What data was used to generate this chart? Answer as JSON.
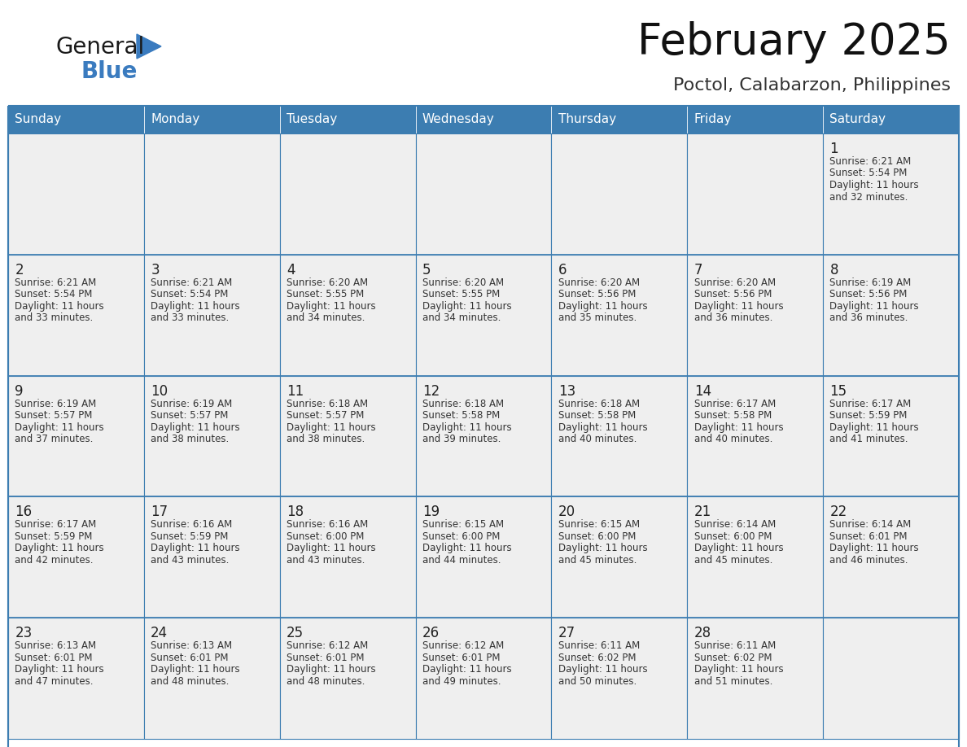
{
  "title": "February 2025",
  "subtitle": "Poctol, Calabarzon, Philippines",
  "header_color": "#3c7db1",
  "header_text_color": "#ffffff",
  "day_names": [
    "Sunday",
    "Monday",
    "Tuesday",
    "Wednesday",
    "Thursday",
    "Friday",
    "Saturday"
  ],
  "background_color": "#ffffff",
  "cell_bg_color": "#efefef",
  "cell_white_bg": "#ffffff",
  "cell_border_color": "#3c7db1",
  "day_num_color": "#222222",
  "info_text_color": "#333333",
  "logo_general_color": "#1a1a1a",
  "logo_blue_color": "#3a7bbf",
  "weeks": [
    [
      {
        "day": null,
        "info": ""
      },
      {
        "day": null,
        "info": ""
      },
      {
        "day": null,
        "info": ""
      },
      {
        "day": null,
        "info": ""
      },
      {
        "day": null,
        "info": ""
      },
      {
        "day": null,
        "info": ""
      },
      {
        "day": 1,
        "info": "Sunrise: 6:21 AM\nSunset: 5:54 PM\nDaylight: 11 hours\nand 32 minutes."
      }
    ],
    [
      {
        "day": 2,
        "info": "Sunrise: 6:21 AM\nSunset: 5:54 PM\nDaylight: 11 hours\nand 33 minutes."
      },
      {
        "day": 3,
        "info": "Sunrise: 6:21 AM\nSunset: 5:54 PM\nDaylight: 11 hours\nand 33 minutes."
      },
      {
        "day": 4,
        "info": "Sunrise: 6:20 AM\nSunset: 5:55 PM\nDaylight: 11 hours\nand 34 minutes."
      },
      {
        "day": 5,
        "info": "Sunrise: 6:20 AM\nSunset: 5:55 PM\nDaylight: 11 hours\nand 34 minutes."
      },
      {
        "day": 6,
        "info": "Sunrise: 6:20 AM\nSunset: 5:56 PM\nDaylight: 11 hours\nand 35 minutes."
      },
      {
        "day": 7,
        "info": "Sunrise: 6:20 AM\nSunset: 5:56 PM\nDaylight: 11 hours\nand 36 minutes."
      },
      {
        "day": 8,
        "info": "Sunrise: 6:19 AM\nSunset: 5:56 PM\nDaylight: 11 hours\nand 36 minutes."
      }
    ],
    [
      {
        "day": 9,
        "info": "Sunrise: 6:19 AM\nSunset: 5:57 PM\nDaylight: 11 hours\nand 37 minutes."
      },
      {
        "day": 10,
        "info": "Sunrise: 6:19 AM\nSunset: 5:57 PM\nDaylight: 11 hours\nand 38 minutes."
      },
      {
        "day": 11,
        "info": "Sunrise: 6:18 AM\nSunset: 5:57 PM\nDaylight: 11 hours\nand 38 minutes."
      },
      {
        "day": 12,
        "info": "Sunrise: 6:18 AM\nSunset: 5:58 PM\nDaylight: 11 hours\nand 39 minutes."
      },
      {
        "day": 13,
        "info": "Sunrise: 6:18 AM\nSunset: 5:58 PM\nDaylight: 11 hours\nand 40 minutes."
      },
      {
        "day": 14,
        "info": "Sunrise: 6:17 AM\nSunset: 5:58 PM\nDaylight: 11 hours\nand 40 minutes."
      },
      {
        "day": 15,
        "info": "Sunrise: 6:17 AM\nSunset: 5:59 PM\nDaylight: 11 hours\nand 41 minutes."
      }
    ],
    [
      {
        "day": 16,
        "info": "Sunrise: 6:17 AM\nSunset: 5:59 PM\nDaylight: 11 hours\nand 42 minutes."
      },
      {
        "day": 17,
        "info": "Sunrise: 6:16 AM\nSunset: 5:59 PM\nDaylight: 11 hours\nand 43 minutes."
      },
      {
        "day": 18,
        "info": "Sunrise: 6:16 AM\nSunset: 6:00 PM\nDaylight: 11 hours\nand 43 minutes."
      },
      {
        "day": 19,
        "info": "Sunrise: 6:15 AM\nSunset: 6:00 PM\nDaylight: 11 hours\nand 44 minutes."
      },
      {
        "day": 20,
        "info": "Sunrise: 6:15 AM\nSunset: 6:00 PM\nDaylight: 11 hours\nand 45 minutes."
      },
      {
        "day": 21,
        "info": "Sunrise: 6:14 AM\nSunset: 6:00 PM\nDaylight: 11 hours\nand 45 minutes."
      },
      {
        "day": 22,
        "info": "Sunrise: 6:14 AM\nSunset: 6:01 PM\nDaylight: 11 hours\nand 46 minutes."
      }
    ],
    [
      {
        "day": 23,
        "info": "Sunrise: 6:13 AM\nSunset: 6:01 PM\nDaylight: 11 hours\nand 47 minutes."
      },
      {
        "day": 24,
        "info": "Sunrise: 6:13 AM\nSunset: 6:01 PM\nDaylight: 11 hours\nand 48 minutes."
      },
      {
        "day": 25,
        "info": "Sunrise: 6:12 AM\nSunset: 6:01 PM\nDaylight: 11 hours\nand 48 minutes."
      },
      {
        "day": 26,
        "info": "Sunrise: 6:12 AM\nSunset: 6:01 PM\nDaylight: 11 hours\nand 49 minutes."
      },
      {
        "day": 27,
        "info": "Sunrise: 6:11 AM\nSunset: 6:02 PM\nDaylight: 11 hours\nand 50 minutes."
      },
      {
        "day": 28,
        "info": "Sunrise: 6:11 AM\nSunset: 6:02 PM\nDaylight: 11 hours\nand 51 minutes."
      },
      {
        "day": null,
        "info": ""
      }
    ]
  ]
}
